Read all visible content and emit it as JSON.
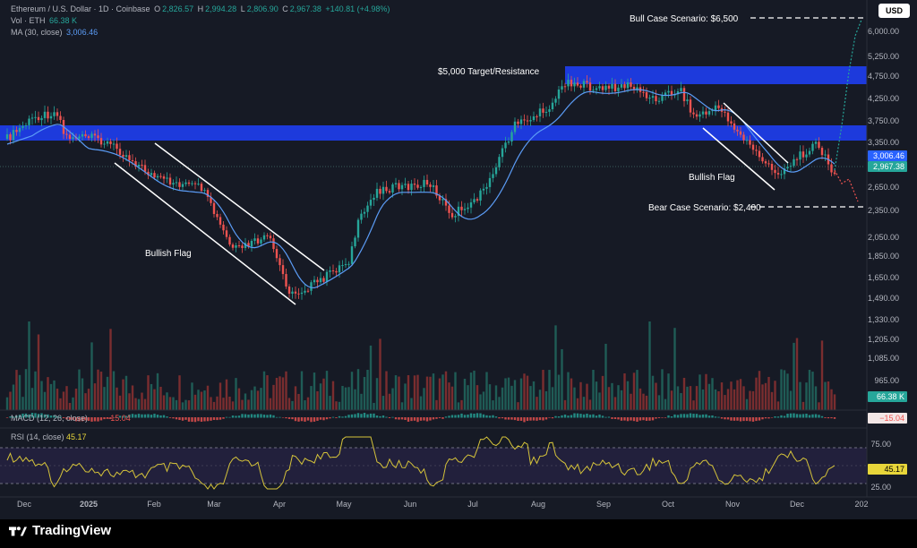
{
  "header": {
    "symbol": "Ethereum / U.S. Dollar · 1D · Coinbase",
    "ohlc": [
      {
        "label": "O",
        "value": "2,826.57"
      },
      {
        "label": "H",
        "value": "2,994.28"
      },
      {
        "label": "L",
        "value": "2,806.90"
      },
      {
        "label": "C",
        "value": "2,967.38"
      }
    ],
    "change": "+140.81 (+4.98%)",
    "vol_label": "Vol · ETH",
    "vol_value": "66.38 K",
    "ma_label": "MA (30, close)",
    "ma_value": "3,006.46"
  },
  "currency_button": "USD",
  "annotations": {
    "bull_case": "Bull Case Scenario: $6,500",
    "target": "$5,000 Target/Resistance",
    "bullish_flag_1": "Bullish Flag",
    "bullish_flag_2": "Bullish Flag",
    "bear_case": "Bear Case Scenario: $2,400"
  },
  "price_axis": [
    "6,000.00",
    "5,250.00",
    "4,750.00",
    "4,250.00",
    "3,750.00",
    "3,350.00",
    "2,650.00",
    "2,350.00",
    "2,050.00",
    "1,850.00",
    "1,650.00",
    "1,490.00",
    "1,330.00",
    "1,205.00",
    "1,085.00",
    "965.00"
  ],
  "price_badges": {
    "ma": "3,006.46",
    "close": "2,967.38",
    "volume": "66.38 K",
    "macd": "−15.04",
    "rsi": "45.17"
  },
  "macd": {
    "label": "MACD (12, 26, close)",
    "value": "−15.04"
  },
  "rsi": {
    "label": "RSI (14, close)",
    "value": "45.17",
    "levels": [
      "75.00",
      "25.00"
    ]
  },
  "time_axis": [
    "Dec",
    "2025",
    "Feb",
    "Mar",
    "Apr",
    "May",
    "Jun",
    "Jul",
    "Aug",
    "Sep",
    "Oct",
    "Nov",
    "Dec",
    "202"
  ],
  "brand": "TradingView",
  "colors": {
    "up": "#26a69a",
    "down": "#ef5350",
    "ma": "#5b9cf6",
    "zone": "#1e3ce6",
    "rsi": "#d6c43a",
    "bg": "#161a25"
  }
}
